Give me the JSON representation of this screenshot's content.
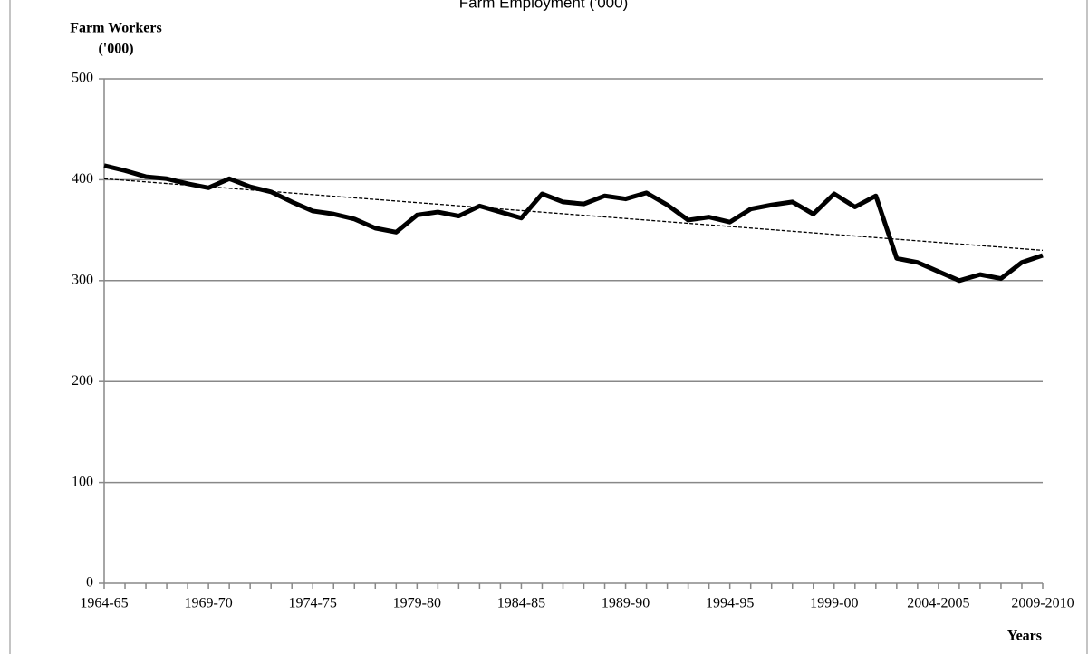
{
  "chart_data": {
    "type": "line",
    "title": "Farm Employment ('000)",
    "ylabel": [
      "Farm Workers",
      "('000)"
    ],
    "xlabel": "Years",
    "categories": [
      "1964-65",
      null,
      null,
      null,
      null,
      "1969-70",
      null,
      null,
      null,
      null,
      "1974-75",
      null,
      null,
      null,
      null,
      "1979-80",
      null,
      null,
      null,
      null,
      "1984-85",
      null,
      null,
      null,
      null,
      "1989-90",
      null,
      null,
      null,
      null,
      "1994-95",
      null,
      null,
      null,
      null,
      "1999-00",
      null,
      null,
      null,
      null,
      "2004-2005",
      null,
      null,
      null,
      null,
      "2009-2010"
    ],
    "series": [
      {
        "color": "#000000",
        "values": [
          414,
          409,
          403,
          401,
          396,
          392,
          401,
          393,
          388,
          378,
          369,
          366,
          361,
          352,
          348,
          365,
          368,
          364,
          374,
          368,
          362,
          386,
          378,
          376,
          384,
          381,
          387,
          375,
          360,
          363,
          358,
          371,
          375,
          378,
          366,
          386,
          373,
          384,
          322,
          318,
          309,
          300,
          306,
          302,
          318,
          325
        ]
      }
    ],
    "trendline": [
      401,
      330
    ],
    "ylim": [
      0,
      500
    ],
    "yticks": [
      0,
      100,
      200,
      300,
      400,
      500
    ],
    "grid": true
  }
}
